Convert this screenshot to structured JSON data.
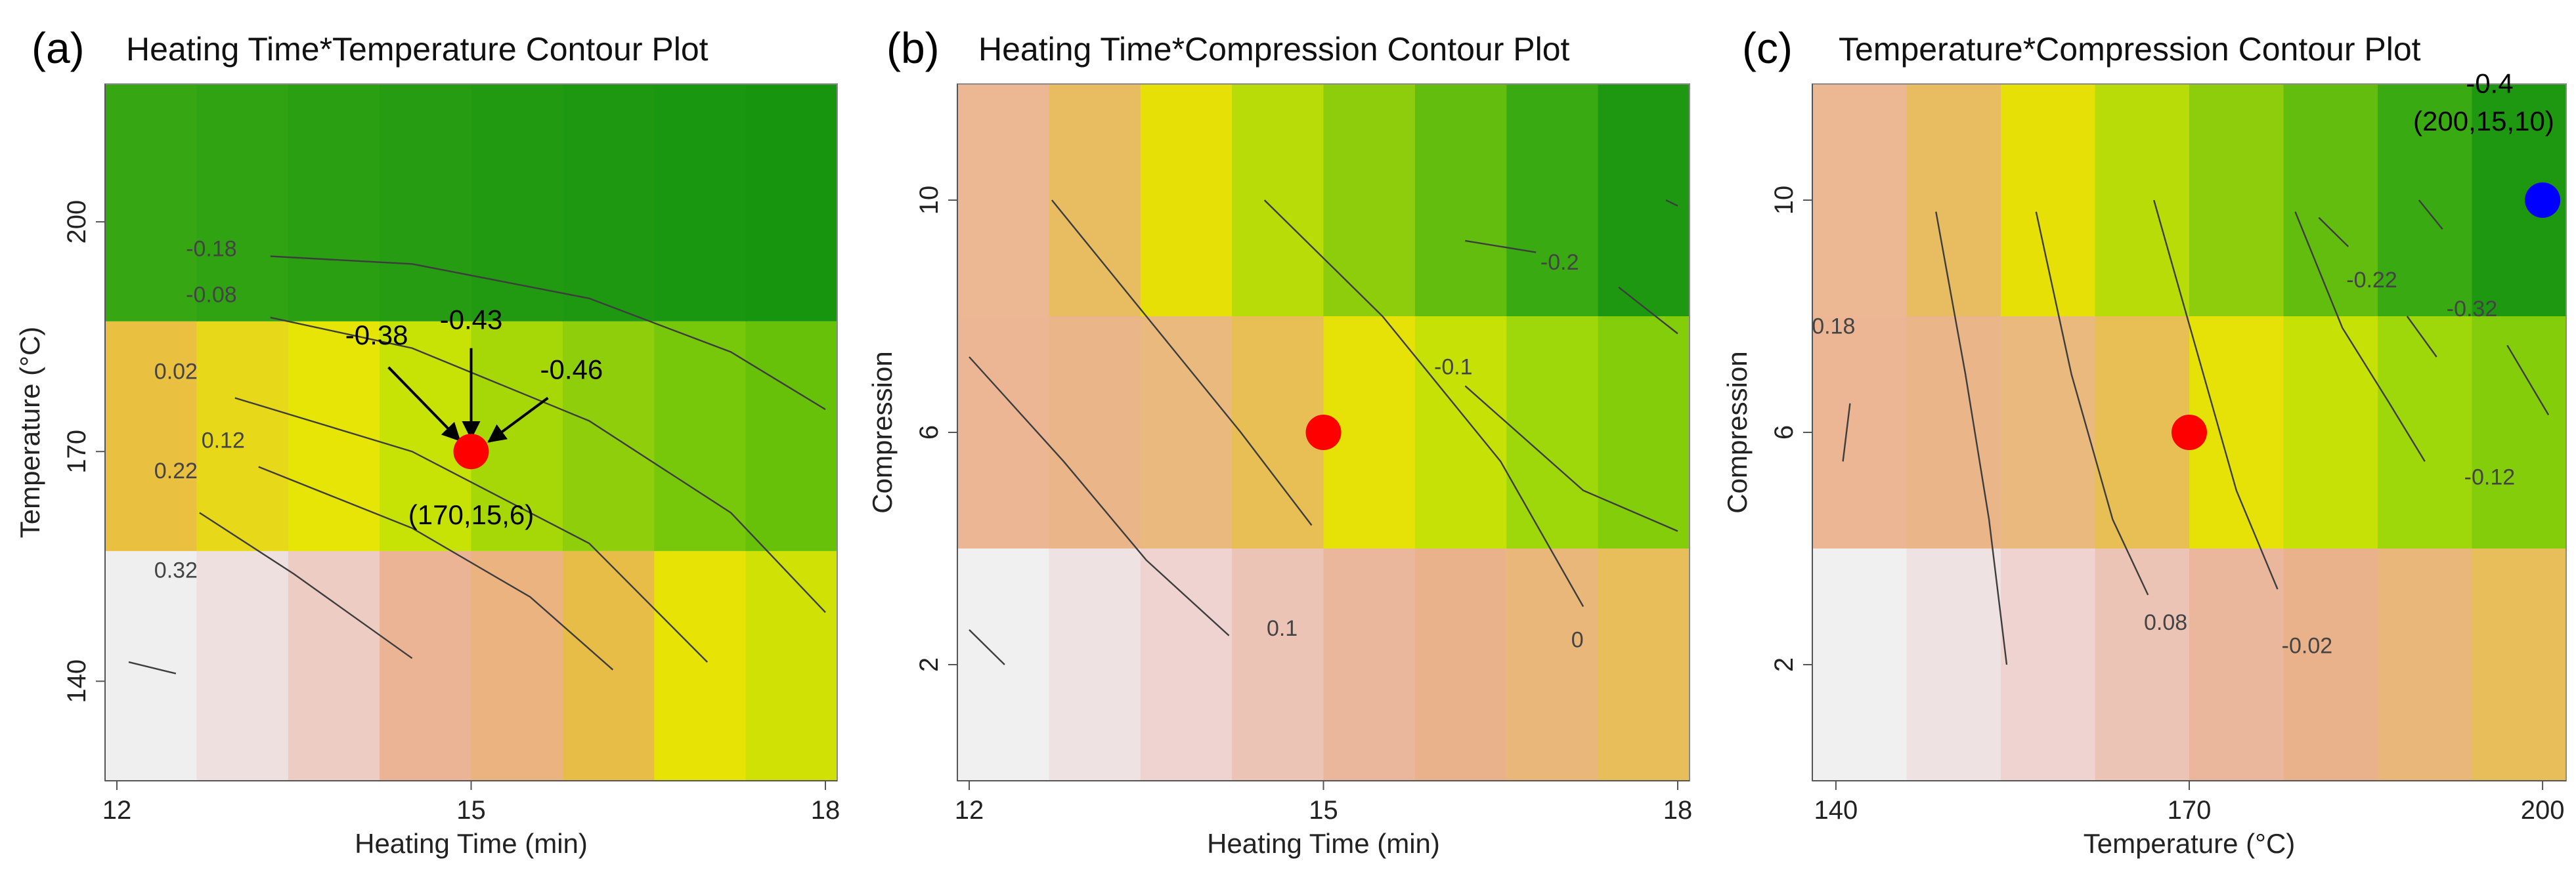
{
  "chart_data": [
    {
      "type": "heatmap",
      "panel_label": "(a)",
      "title": "Heating Time*Temperature Contour Plot",
      "xlabel": "Heating Time (min)",
      "ylabel": "Temperature (°C)",
      "xlim": [
        11.9,
        18.1
      ],
      "ylim": [
        127,
        218
      ],
      "xticks": [
        12,
        15,
        18
      ],
      "yticks": [
        140,
        170,
        200
      ],
      "x_axis_side": "bottom",
      "y_axis_side": "left",
      "grid": false,
      "bands": [
        {
          "y_from": 127,
          "y_to": 157,
          "palette": "white-to-yellow"
        },
        {
          "y_from": 157,
          "y_to": 187,
          "palette": "yellow-to-green"
        },
        {
          "y_from": 187,
          "y_to": 218,
          "palette": "green"
        }
      ],
      "contours": [
        {
          "label": "0.32",
          "label_at": [
            12.5,
            153.5
          ],
          "points": [
            [
              12.1,
              142.5
            ],
            [
              12.5,
              141.0
            ]
          ]
        },
        {
          "label": "0.22",
          "label_at": [
            12.5,
            166.5
          ],
          "points": [
            [
              12.7,
              162.0
            ],
            [
              13.5,
              154.0
            ],
            [
              14.5,
              143.0
            ]
          ]
        },
        {
          "label": "0.12",
          "label_at": [
            12.9,
            170.5
          ],
          "points": [
            [
              13.2,
              168.0
            ],
            [
              14.5,
              160.0
            ],
            [
              15.5,
              151.0
            ],
            [
              16.2,
              141.5
            ]
          ]
        },
        {
          "label": "0.02",
          "label_at": [
            12.5,
            179.5
          ],
          "points": [
            [
              13.0,
              177.0
            ],
            [
              14.5,
              170.0
            ],
            [
              16.0,
              158.0
            ],
            [
              17.0,
              142.5
            ]
          ]
        },
        {
          "label": "-0.08",
          "label_at": [
            12.8,
            189.5
          ],
          "points": [
            [
              13.3,
              187.5
            ],
            [
              14.5,
              183.5
            ],
            [
              16.0,
              174.0
            ],
            [
              17.2,
              162.0
            ],
            [
              18.0,
              149.0
            ]
          ]
        },
        {
          "label": "-0.18",
          "label_at": [
            12.8,
            195.5
          ],
          "points": [
            [
              13.3,
              195.5
            ],
            [
              14.5,
              194.5
            ],
            [
              16.0,
              190.0
            ],
            [
              17.2,
              183.0
            ],
            [
              18.0,
              175.5
            ]
          ]
        }
      ],
      "points": [
        {
          "x": 15,
          "y": 170,
          "color": "#ff0000",
          "label": "(170,15,6)",
          "label_at": [
            15.0,
            160.5
          ]
        }
      ],
      "annotations": [
        {
          "text": "-0.38",
          "text_at": [
            14.2,
            184.0
          ],
          "arrow_from": [
            14.3,
            181.0
          ],
          "arrow_to": [
            14.9,
            171.5
          ]
        },
        {
          "text": "-0.43",
          "text_at": [
            15.0,
            186.0
          ],
          "arrow_from": [
            15.0,
            183.5
          ],
          "arrow_to": [
            15.0,
            171.8
          ]
        },
        {
          "text": "-0.46",
          "text_at": [
            15.85,
            179.5
          ],
          "arrow_from": [
            15.65,
            177.0
          ],
          "arrow_to": [
            15.15,
            171.3
          ]
        }
      ]
    },
    {
      "type": "heatmap",
      "panel_label": "(b)",
      "title": "Heating Time*Compression Contour Plot",
      "xlabel": "Heating Time (min)",
      "ylabel": "Compression",
      "xlim": [
        11.9,
        18.1
      ],
      "ylim": [
        0,
        12
      ],
      "xticks": [
        12,
        15,
        18
      ],
      "yticks": [
        2,
        6,
        10
      ],
      "x_axis_side": "bottom",
      "y_axis_side": "left",
      "grid": false,
      "bands": [
        {
          "y_from": 0,
          "y_to": 4,
          "palette": "white-to-salmon"
        },
        {
          "y_from": 4,
          "y_to": 8,
          "palette": "salmon-to-green"
        },
        {
          "y_from": 8,
          "y_to": 12,
          "palette": "salmon-to-darkgreen"
        }
      ],
      "contours": [
        {
          "label": "",
          "points": [
            [
              12.0,
              2.6
            ],
            [
              12.3,
              2.0
            ]
          ]
        },
        {
          "label": "",
          "points": [
            [
              12.0,
              7.3
            ],
            [
              12.8,
              5.5
            ],
            [
              13.5,
              3.8
            ],
            [
              14.2,
              2.5
            ]
          ]
        },
        {
          "label": "0.1",
          "label_at": [
            14.65,
            2.5
          ],
          "points": [
            [
              12.7,
              10.0
            ],
            [
              13.5,
              8.0
            ],
            [
              14.3,
              6.0
            ],
            [
              14.9,
              4.4
            ]
          ]
        },
        {
          "label": "0",
          "label_at": [
            17.15,
            2.3
          ],
          "points": [
            [
              14.5,
              10.0
            ],
            [
              15.5,
              8.0
            ],
            [
              16.5,
              5.5
            ],
            [
              17.2,
              3.0
            ]
          ]
        },
        {
          "label": "-0.1",
          "label_at": [
            16.1,
            7.0
          ],
          "points": [
            [
              16.2,
              6.8
            ],
            [
              17.2,
              5.0
            ],
            [
              18.0,
              4.3
            ]
          ]
        },
        {
          "label": "-0.2",
          "label_at": [
            17.0,
            8.8
          ],
          "points": [
            [
              16.2,
              9.3
            ],
            [
              16.8,
              9.1
            ]
          ]
        },
        {
          "label": "",
          "points": [
            [
              17.5,
              8.5
            ],
            [
              18.0,
              7.7
            ]
          ]
        },
        {
          "label": "",
          "points": [
            [
              17.9,
              10.0
            ],
            [
              18.0,
              9.9
            ]
          ]
        }
      ],
      "points": [
        {
          "x": 15,
          "y": 6,
          "color": "#ff0000"
        }
      ],
      "annotations": []
    },
    {
      "type": "heatmap",
      "panel_label": "(c)",
      "title": "Temperature*Compression Contour Plot",
      "xlabel": "Temperature (°C)",
      "ylabel": "Compression",
      "xlim": [
        138,
        202
      ],
      "ylim": [
        0,
        12
      ],
      "xticks": [
        140,
        170,
        200
      ],
      "yticks": [
        2,
        6,
        10
      ],
      "x_axis_side": "bottom",
      "y_axis_side": "left",
      "grid": false,
      "bands": [
        {
          "y_from": 0,
          "y_to": 4,
          "palette": "white-to-salmon"
        },
        {
          "y_from": 4,
          "y_to": 8,
          "palette": "salmon-to-green"
        },
        {
          "y_from": 8,
          "y_to": 12,
          "palette": "salmon-to-darkgreen"
        }
      ],
      "contours": [
        {
          "label": "0.18",
          "label_at": [
            139.8,
            7.7
          ],
          "points": [
            [
              141.2,
              6.5
            ],
            [
              140.6,
              5.5
            ]
          ]
        },
        {
          "label": "",
          "points": [
            [
              148.5,
              9.8
            ],
            [
              151.0,
              7.0
            ],
            [
              153.0,
              4.5
            ],
            [
              154.5,
              2.0
            ]
          ]
        },
        {
          "label": "0.08",
          "label_at": [
            168.0,
            2.6
          ],
          "points": [
            [
              157.0,
              9.8
            ],
            [
              160.0,
              7.0
            ],
            [
              163.5,
              4.5
            ],
            [
              166.5,
              3.2
            ]
          ]
        },
        {
          "label": "-0.02",
          "label_at": [
            180.0,
            2.2
          ],
          "points": [
            [
              167.0,
              10.0
            ],
            [
              170.5,
              7.5
            ],
            [
              174.0,
              5.0
            ],
            [
              177.5,
              3.3
            ]
          ]
        },
        {
          "label": "-0.12",
          "label_at": [
            195.5,
            5.1
          ],
          "points": [
            [
              179.0,
              9.8
            ],
            [
              183.0,
              7.8
            ],
            [
              187.0,
              6.5
            ],
            [
              190.0,
              5.5
            ]
          ]
        },
        {
          "label": "-0.22",
          "label_at": [
            185.5,
            8.5
          ],
          "points": [
            [
              181.0,
              9.7
            ],
            [
              183.5,
              9.2
            ]
          ]
        },
        {
          "label": "",
          "points": [
            [
              188.5,
              8.0
            ],
            [
              191.0,
              7.3
            ]
          ]
        },
        {
          "label": "-0.32",
          "label_at": [
            194.0,
            8.0
          ],
          "points": [
            [
              189.5,
              10.0
            ],
            [
              191.5,
              9.5
            ]
          ]
        },
        {
          "label": "",
          "points": [
            [
              197.0,
              7.5
            ],
            [
              200.5,
              6.3
            ]
          ]
        }
      ],
      "points": [
        {
          "x": 170,
          "y": 6,
          "color": "#ff0000"
        },
        {
          "x": 200,
          "y": 10,
          "color": "#0000ff",
          "label": "(200,15,10)",
          "label_at": [
            195.0,
            11.2
          ],
          "value_label": "-0.4",
          "value_label_at": [
            195.5,
            11.85
          ]
        }
      ],
      "annotations": []
    }
  ]
}
